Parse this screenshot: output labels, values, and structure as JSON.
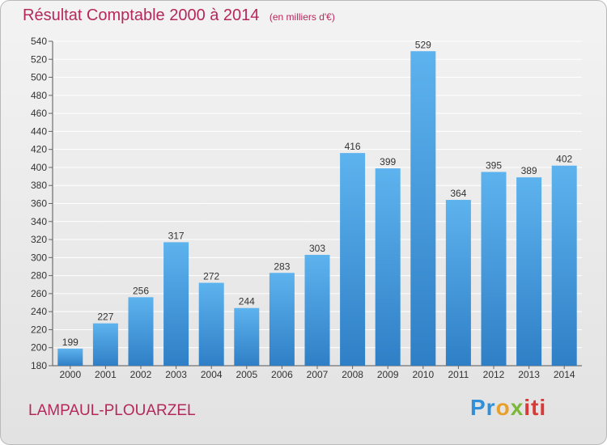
{
  "header": {
    "title": "Résultat Comptable 2000 à 2014",
    "subtitle": "(en milliers d'€)"
  },
  "footer": {
    "commune": "LAMPAUL-PLOUARZEL",
    "logo_parts": [
      "Pr",
      "o",
      "x",
      "iti"
    ]
  },
  "colors": {
    "bar": "#3f9ce0",
    "title": "#b5285a",
    "grid": "#ffffff"
  },
  "chart_data": {
    "type": "bar",
    "title": "Résultat Comptable 2000 à 2014",
    "ylabel": "(en milliers d'€)",
    "xlabel": "",
    "categories": [
      "2000",
      "2001",
      "2002",
      "2003",
      "2004",
      "2005",
      "2006",
      "2007",
      "2008",
      "2009",
      "2010",
      "2011",
      "2012",
      "2013",
      "2014"
    ],
    "values": [
      199,
      227,
      256,
      317,
      272,
      244,
      283,
      303,
      416,
      399,
      529,
      364,
      395,
      389,
      402
    ],
    "ylim": [
      180,
      540
    ],
    "yticks": [
      180,
      200,
      220,
      240,
      260,
      280,
      300,
      320,
      340,
      360,
      380,
      400,
      420,
      440,
      460,
      480,
      500,
      520,
      540
    ],
    "grid": true
  }
}
